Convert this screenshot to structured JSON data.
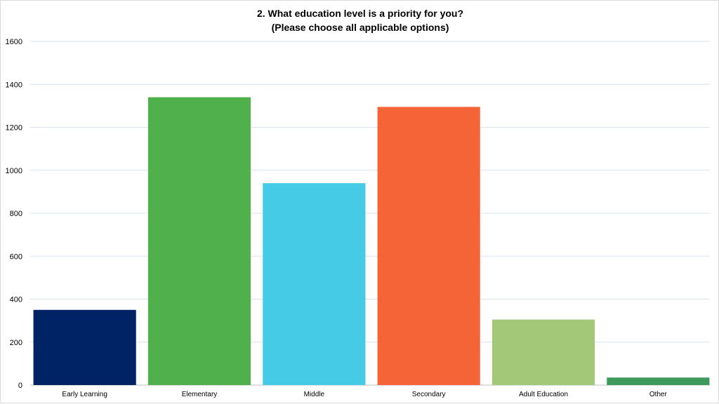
{
  "chart_data": {
    "type": "bar",
    "title": "2. What education level is a priority for you?",
    "subtitle": "(Please choose all applicable options)",
    "categories": [
      "Early Learning",
      "Elementary",
      "Middle",
      "Secondary",
      "Adult Education",
      "Other"
    ],
    "values": [
      350,
      1340,
      940,
      1295,
      305,
      35
    ],
    "colors": [
      "#002366",
      "#50b04b",
      "#45cbe6",
      "#f56437",
      "#a2c878",
      "#3d9a5c"
    ],
    "ylim": [
      0,
      1600
    ],
    "yticks": [
      "0",
      "200",
      "400",
      "600",
      "800",
      "1000",
      "1200",
      "1400",
      "1600"
    ],
    "grid": true,
    "legend": "none",
    "xlabel": "",
    "ylabel": ""
  }
}
